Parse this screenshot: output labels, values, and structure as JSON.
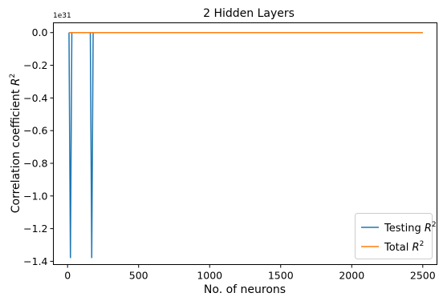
{
  "chart_data": {
    "type": "line",
    "title": "2 Hidden Layers",
    "xlabel": "No. of neurons",
    "ylabel_text": "Correlation coefficient ",
    "ylabel_math": "R",
    "ylabel_sup": "2",
    "y_offset_label": "1e31",
    "xlim": [
      -100,
      2600
    ],
    "ylim": [
      -1.42,
      0.06
    ],
    "x_ticks": [
      0,
      500,
      1000,
      1500,
      2000,
      2500
    ],
    "x_tick_labels": [
      "0",
      "500",
      "1000",
      "1500",
      "2000",
      "2500"
    ],
    "y_ticks": [
      0.0,
      -0.2,
      -0.4,
      -0.6,
      -0.8,
      -1.0,
      -1.2,
      -1.4
    ],
    "y_tick_labels": [
      "0.0",
      "−0.2",
      "−0.4",
      "−0.6",
      "−0.8",
      "−1.0",
      "−1.2",
      "−1.4"
    ],
    "grid": false,
    "legend_position": "lower-right",
    "series": [
      {
        "name": "Testing",
        "legend_sup": "2",
        "legend_math": "R",
        "color": "#1f77b4",
        "x": [
          10,
          20,
          30,
          160,
          170,
          180,
          2500
        ],
        "y": [
          0,
          -1.38,
          0,
          0,
          -1.38,
          0,
          0
        ]
      },
      {
        "name": "Total",
        "legend_sup": "2",
        "legend_math": "R",
        "color": "#ff7f0e",
        "x": [
          10,
          2500
        ],
        "y": [
          0,
          0
        ]
      }
    ]
  }
}
